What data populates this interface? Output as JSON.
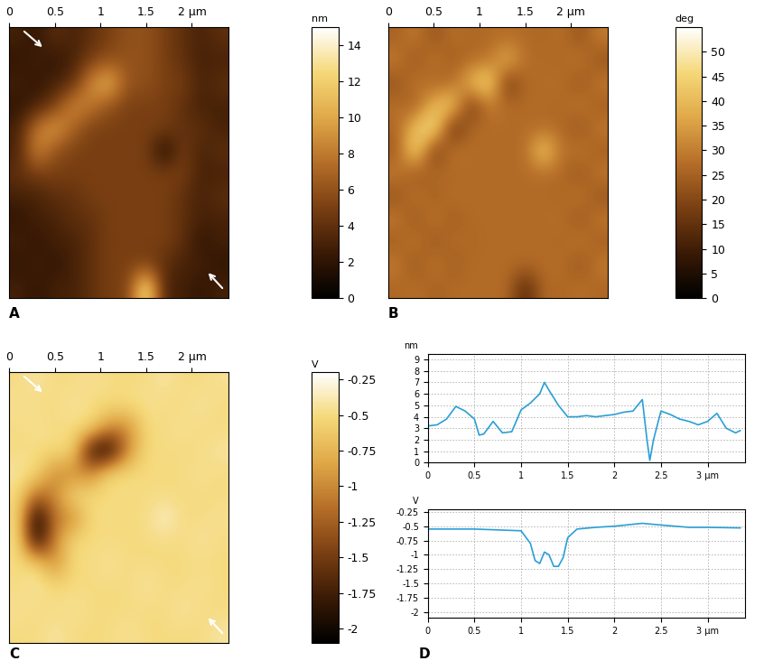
{
  "chart_data": [
    {
      "type": "heatmap",
      "panel_label": "A",
      "xlim": [
        0,
        2.4
      ],
      "ylim": [
        0,
        2.4
      ],
      "xticks": [
        0,
        0.5,
        1,
        1.5,
        {
          "value": 2,
          "label": "2 µm"
        }
      ],
      "tick_labels": "x",
      "cells": [
        [
          3,
          2,
          4,
          3,
          4,
          5,
          6,
          6,
          5,
          4,
          3,
          4
        ],
        [
          2,
          3,
          2,
          3,
          5,
          6,
          6,
          6,
          5,
          4,
          3,
          3
        ],
        [
          3,
          2,
          3,
          4,
          9,
          11,
          6,
          6,
          5,
          5,
          3,
          4
        ],
        [
          2,
          3,
          5,
          9,
          8,
          6,
          5,
          5,
          5,
          4,
          3,
          3
        ],
        [
          3,
          8,
          10,
          7,
          5,
          5,
          5,
          5,
          5,
          4,
          4,
          3
        ],
        [
          3,
          9,
          6,
          5,
          5,
          5,
          5,
          5,
          1,
          5,
          3,
          4
        ],
        [
          4,
          5,
          5,
          5,
          5,
          5,
          5,
          5,
          5,
          5,
          3,
          3
        ],
        [
          3,
          3,
          4,
          4,
          5,
          5,
          5,
          5,
          5,
          4,
          3,
          4
        ],
        [
          2,
          3,
          3,
          4,
          4,
          5,
          5,
          5,
          5,
          4,
          3,
          3
        ],
        [
          3,
          2,
          3,
          3,
          4,
          5,
          5,
          5,
          5,
          4,
          2,
          3
        ],
        [
          2,
          3,
          2,
          3,
          4,
          5,
          5,
          5,
          4,
          3,
          3,
          2
        ],
        [
          3,
          2,
          3,
          3,
          4,
          5,
          5,
          14,
          3,
          3,
          2,
          3
        ]
      ],
      "colorbar_label": "nm",
      "colorbar_range": [
        0,
        15
      ],
      "colorbar_ticks": [
        0,
        2,
        4,
        6,
        8,
        10,
        12,
        14
      ]
    },
    {
      "type": "heatmap",
      "panel_label": "B",
      "xlim": [
        0,
        2.4
      ],
      "ylim": [
        0,
        2.4
      ],
      "xticks": [
        0,
        0.5,
        1,
        1.5,
        {
          "value": 2,
          "label": "2 µm"
        }
      ],
      "tick_labels": "x",
      "cells": [
        [
          25,
          30,
          22,
          28,
          26,
          27,
          27,
          27,
          26,
          28,
          22,
          30
        ],
        [
          30,
          22,
          30,
          24,
          27,
          28,
          40,
          27,
          27,
          26,
          30,
          22
        ],
        [
          22,
          30,
          25,
          27,
          40,
          48,
          15,
          27,
          27,
          28,
          22,
          30
        ],
        [
          28,
          24,
          40,
          45,
          15,
          30,
          27,
          27,
          27,
          26,
          30,
          24
        ],
        [
          26,
          42,
          50,
          12,
          27,
          27,
          27,
          27,
          27,
          27,
          22,
          30
        ],
        [
          24,
          48,
          15,
          30,
          27,
          27,
          27,
          27,
          45,
          27,
          30,
          24
        ],
        [
          30,
          22,
          28,
          26,
          27,
          27,
          27,
          27,
          27,
          27,
          22,
          30
        ],
        [
          22,
          30,
          24,
          28,
          27,
          27,
          27,
          27,
          27,
          26,
          30,
          22
        ],
        [
          30,
          22,
          30,
          24,
          27,
          27,
          27,
          27,
          27,
          28,
          22,
          30
        ],
        [
          24,
          30,
          22,
          28,
          26,
          27,
          27,
          27,
          27,
          26,
          30,
          24
        ],
        [
          30,
          22,
          30,
          24,
          27,
          27,
          27,
          27,
          27,
          28,
          22,
          30
        ],
        [
          26,
          28,
          25,
          27,
          27,
          27,
          27,
          12,
          27,
          26,
          28,
          26
        ]
      ],
      "colorbar_label": "deg",
      "colorbar_range": [
        0,
        55
      ],
      "colorbar_ticks": [
        0,
        5,
        10,
        15,
        20,
        25,
        30,
        35,
        40,
        45,
        50
      ]
    },
    {
      "type": "heatmap",
      "panel_label": "C",
      "xlim": [
        0,
        2.4
      ],
      "ylim": [
        0,
        2.4
      ],
      "xticks": [
        0,
        0.5,
        1,
        1.5,
        {
          "value": 2,
          "label": "2 µm"
        }
      ],
      "tick_labels": "x",
      "cells": [
        [
          -0.5,
          -0.42,
          -0.5,
          -0.5,
          -0.45,
          -0.5,
          -0.5,
          -0.5,
          -0.42,
          -0.5,
          -0.5,
          -0.45
        ],
        [
          -0.45,
          -0.5,
          -0.5,
          -0.42,
          -0.5,
          -0.5,
          -0.5,
          -0.45,
          -0.5,
          -0.5,
          -0.42,
          -0.5
        ],
        [
          -0.5,
          -0.45,
          -0.5,
          -0.5,
          -0.5,
          -1.0,
          -1.0,
          -0.5,
          -0.5,
          -0.45,
          -0.5,
          -0.5
        ],
        [
          -0.5,
          -0.5,
          -0.5,
          -0.5,
          -1.9,
          -2.0,
          -1.0,
          -0.5,
          -0.5,
          -0.5,
          -0.5,
          -0.42
        ],
        [
          -0.42,
          -0.5,
          -1.0,
          -1.0,
          -1.0,
          -0.5,
          -0.5,
          -0.5,
          -0.5,
          -0.5,
          -0.45,
          -0.5
        ],
        [
          -0.5,
          -1.2,
          -1.0,
          -0.5,
          -0.5,
          -0.5,
          -0.5,
          -0.5,
          -0.5,
          -0.5,
          -0.5,
          -0.5
        ],
        [
          -0.5,
          -2.1,
          -1.1,
          -1.0,
          -0.5,
          -0.5,
          -0.5,
          -0.5,
          -0.3,
          -0.5,
          -0.5,
          -0.45
        ],
        [
          -0.45,
          -2.0,
          -1.0,
          -0.5,
          -0.5,
          -0.5,
          -0.5,
          -0.5,
          -0.5,
          -0.5,
          -0.42,
          -0.5
        ],
        [
          -0.5,
          -0.5,
          -1.0,
          -0.5,
          -0.5,
          -0.45,
          -0.5,
          -0.5,
          -0.5,
          -0.5,
          -0.5,
          -0.5
        ],
        [
          -0.5,
          -0.42,
          -0.5,
          -0.5,
          -0.5,
          -0.5,
          -0.5,
          -0.42,
          -0.5,
          -0.5,
          -0.45,
          -0.5
        ],
        [
          -0.45,
          -0.5,
          -0.5,
          -0.45,
          -0.5,
          -0.5,
          -0.5,
          -0.5,
          -0.5,
          -0.42,
          -0.5,
          -0.5
        ],
        [
          -0.5,
          -0.5,
          -0.42,
          -0.5,
          -0.5,
          -0.5,
          -0.45,
          -0.5,
          -0.5,
          -0.5,
          -0.5,
          -0.42
        ]
      ],
      "colorbar_label": "V",
      "colorbar_range": [
        -2.1,
        -0.2
      ],
      "colorbar_ticks": [
        -0.25,
        -0.5,
        -0.75,
        -1,
        -1.25,
        -1.5,
        -1.75,
        -2
      ]
    },
    {
      "type": "line",
      "ylabel": "nm",
      "color": "#2a9fd6",
      "grid": true,
      "x": [
        0,
        0.1,
        0.2,
        0.3,
        0.4,
        0.5,
        0.55,
        0.6,
        0.7,
        0.8,
        0.9,
        1.0,
        1.1,
        1.2,
        1.25,
        1.3,
        1.4,
        1.5,
        1.6,
        1.7,
        1.8,
        1.9,
        2.0,
        2.1,
        2.2,
        2.3,
        2.35,
        2.38,
        2.42,
        2.5,
        2.6,
        2.7,
        2.8,
        2.9,
        3.0,
        3.1,
        3.2,
        3.3,
        3.35
      ],
      "values": [
        3.2,
        3.3,
        3.8,
        4.9,
        4.5,
        3.8,
        2.4,
        2.5,
        3.6,
        2.6,
        2.7,
        4.6,
        5.2,
        6.0,
        7.0,
        6.3,
        5.0,
        4.0,
        4.0,
        4.1,
        4.0,
        4.1,
        4.2,
        4.4,
        4.5,
        5.5,
        2.0,
        0.2,
        2.0,
        4.5,
        4.2,
        3.8,
        3.6,
        3.3,
        3.6,
        4.3,
        3.0,
        2.6,
        2.8
      ],
      "xlim": [
        0,
        3.4
      ],
      "ylim": [
        0,
        9.5
      ],
      "xticks": [
        0,
        0.5,
        1,
        1.5,
        2,
        2.5,
        {
          "value": 3,
          "label": "3 µm"
        }
      ],
      "yticks": [
        0,
        1,
        2,
        3,
        4,
        5,
        6,
        7,
        8,
        9
      ]
    },
    {
      "type": "line",
      "ylabel": "V",
      "color": "#2a9fd6",
      "grid": true,
      "panel_label": "D",
      "x": [
        0,
        0.5,
        1.0,
        1.1,
        1.15,
        1.2,
        1.25,
        1.3,
        1.35,
        1.4,
        1.45,
        1.5,
        1.6,
        1.8,
        2.0,
        2.3,
        2.5,
        2.8,
        3.0,
        3.35
      ],
      "values": [
        -0.55,
        -0.55,
        -0.58,
        -0.8,
        -1.1,
        -1.15,
        -0.95,
        -1.0,
        -1.2,
        -1.2,
        -1.05,
        -0.7,
        -0.55,
        -0.52,
        -0.5,
        -0.45,
        -0.48,
        -0.52,
        -0.52,
        -0.53
      ],
      "xlim": [
        0,
        3.4
      ],
      "ylim": [
        -2.1,
        -0.2
      ],
      "xticks": [
        0,
        0.5,
        1,
        1.5,
        2,
        2.5,
        {
          "value": 3,
          "label": "3 µm"
        }
      ],
      "yticks": [
        -0.25,
        -0.5,
        -0.75,
        -1,
        -1.25,
        -1.5,
        -1.75,
        -2
      ]
    }
  ]
}
